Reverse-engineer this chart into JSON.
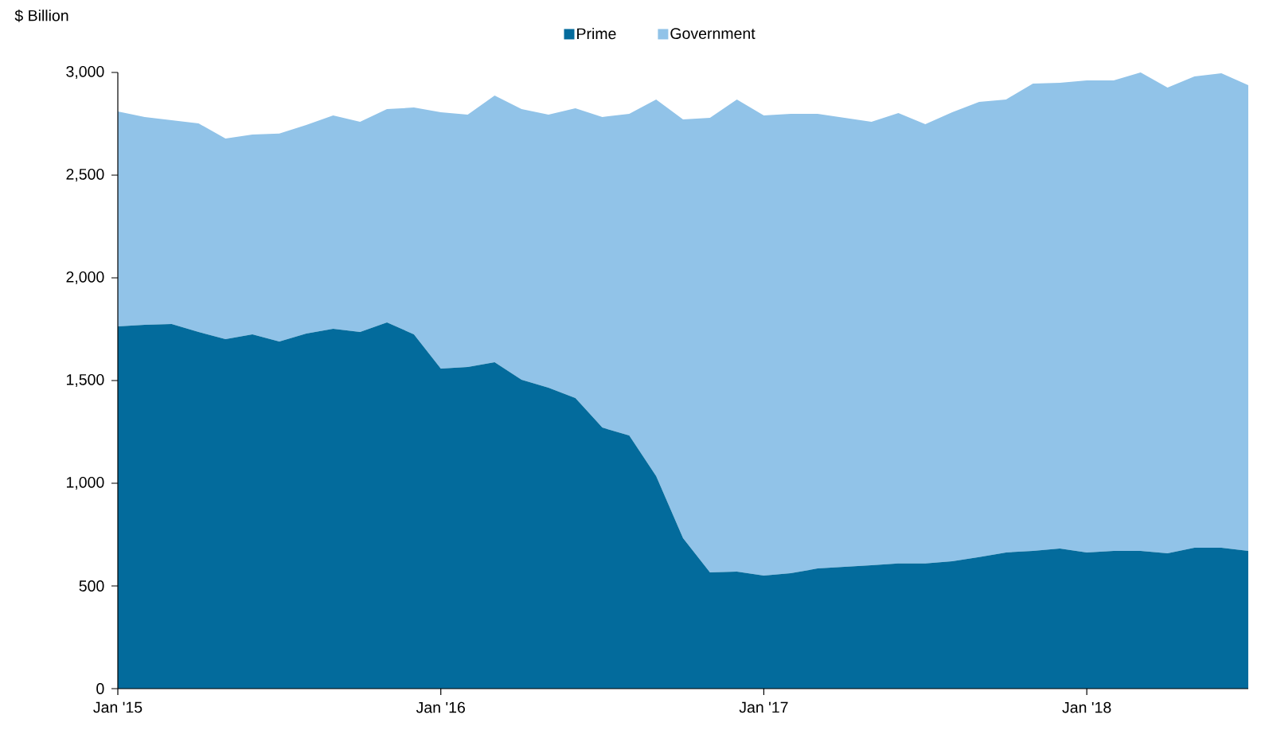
{
  "chart_data": {
    "type": "area",
    "stacked": true,
    "ylabel": "$ Billion",
    "legend": "top",
    "x": [
      "2015-01",
      "2015-02",
      "2015-03",
      "2015-04",
      "2015-05",
      "2015-06",
      "2015-07",
      "2015-08",
      "2015-09",
      "2015-10",
      "2015-11",
      "2015-12",
      "2016-01",
      "2016-02",
      "2016-03",
      "2016-04",
      "2016-05",
      "2016-06",
      "2016-07",
      "2016-08",
      "2016-09",
      "2016-10",
      "2016-11",
      "2016-12",
      "2017-01",
      "2017-02",
      "2017-03",
      "2017-04",
      "2017-05",
      "2017-06",
      "2017-07",
      "2017-08",
      "2017-09",
      "2017-10",
      "2017-11",
      "2017-12",
      "2018-01",
      "2018-02",
      "2018-03",
      "2018-04",
      "2018-05",
      "2018-06",
      "2018-07"
    ],
    "series": [
      {
        "name": "Prime",
        "color": "#036b9c",
        "values": [
          1764,
          1771,
          1775,
          1736,
          1702,
          1725,
          1690,
          1729,
          1752,
          1736,
          1783,
          1725,
          1558,
          1566,
          1589,
          1504,
          1465,
          1415,
          1271,
          1233,
          1035,
          733,
          566,
          570,
          550,
          562,
          585,
          593,
          601,
          609,
          609,
          620,
          640,
          663,
          671,
          682,
          663,
          671,
          671,
          659,
          686,
          686,
          671
        ]
      },
      {
        "name": "Government",
        "color": "#91c3e8",
        "values": [
          1046,
          1012,
          992,
          1016,
          976,
          973,
          1012,
          1015,
          1039,
          1024,
          1039,
          1104,
          1248,
          1229,
          1299,
          1318,
          1330,
          1411,
          1512,
          1565,
          1833,
          2038,
          2213,
          2298,
          2241,
          2236,
          2213,
          2186,
          2159,
          2193,
          2139,
          2186,
          2217,
          2205,
          2275,
          2268,
          2298,
          2290,
          2329,
          2267,
          2295,
          2310,
          2267
        ]
      }
    ],
    "xlim": [
      "2015-01",
      "2018-07"
    ],
    "xticks": [
      {
        "value": "2015-01",
        "label": "Jan '15"
      },
      {
        "value": "2016-01",
        "label": "Jan '16"
      },
      {
        "value": "2017-01",
        "label": "Jan '17"
      },
      {
        "value": "2018-01",
        "label": "Jan '18"
      }
    ],
    "ylim": [
      0,
      3000
    ],
    "yticks": [
      {
        "value": 0,
        "label": "0"
      },
      {
        "value": 500,
        "label": "500"
      },
      {
        "value": 1000,
        "label": "1,000"
      },
      {
        "value": 1500,
        "label": "1,500"
      },
      {
        "value": 2000,
        "label": "2,000"
      },
      {
        "value": 2500,
        "label": "2,500"
      },
      {
        "value": 3000,
        "label": "3,000"
      }
    ]
  }
}
